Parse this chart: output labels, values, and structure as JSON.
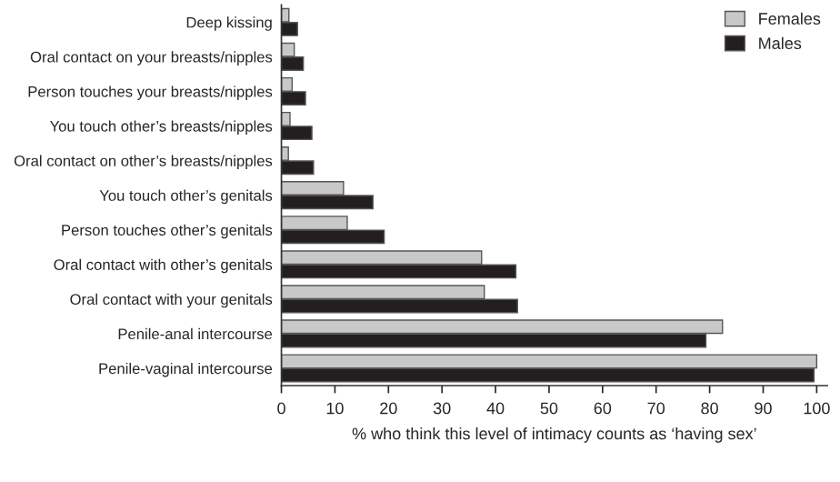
{
  "chart_data": {
    "type": "bar",
    "orientation": "horizontal",
    "xlabel": "% who think this level of intimacy counts as ‘having sex’",
    "categories": [
      "Deep kissing",
      "Oral contact on your breasts/nipples",
      "Person touches your breasts/nipples",
      "You touch other’s breasts/nipples",
      "Oral contact on other’s breasts/nipples",
      "You touch other’s genitals",
      "Person touches other’s genitals",
      "Oral contact with other’s genitals",
      "Oral contact with your genitals",
      "Penile-anal intercourse",
      "Penile-vaginal intercourse"
    ],
    "series": [
      {
        "name": "Females",
        "color": "#c8c8c8",
        "values": [
          1.4,
          2.4,
          2.0,
          1.6,
          1.3,
          11.6,
          12.3,
          37.4,
          37.9,
          82.4,
          100
        ]
      },
      {
        "name": "Males",
        "color": "#231f20",
        "values": [
          3.0,
          4.1,
          4.5,
          5.7,
          6.0,
          17.1,
          19.2,
          43.8,
          44.1,
          79.3,
          99.5
        ]
      }
    ],
    "xlim": [
      0,
      102
    ],
    "xticks": [
      0,
      10,
      20,
      30,
      40,
      50,
      60,
      70,
      80,
      90,
      100
    ],
    "grid": false,
    "legend": "top right"
  }
}
